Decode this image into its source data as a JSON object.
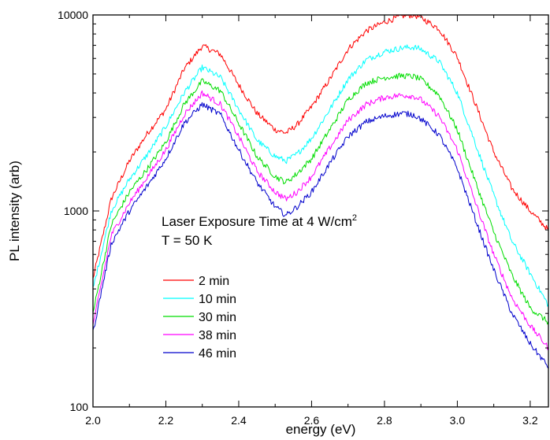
{
  "chart_data": {
    "type": "line",
    "xlabel": "energy (eV)",
    "ylabel": "PL intensity (arb)",
    "xlim": [
      2.0,
      3.25
    ],
    "ylim": [
      100,
      10000
    ],
    "yscale": "log",
    "grid": false,
    "x_ticks": [
      2.0,
      2.2,
      2.4,
      2.6,
      2.8,
      3.0,
      3.2
    ],
    "x_tick_labels": [
      "2.0",
      "2.2",
      "2.4",
      "2.6",
      "2.8",
      "3.0",
      "3.2"
    ],
    "y_ticks": [
      100,
      1000,
      10000
    ],
    "y_tick_labels": [
      "100",
      "1000",
      "10000"
    ],
    "annotation": {
      "line1_prefix": "Laser Exposure Time at 4 W/cm",
      "line1_sup": "2",
      "line2": "T = 50 K"
    },
    "legend_position": "inside-left",
    "series": [
      {
        "name": "2 min",
        "color": "#ff0000",
        "x": [
          2.0,
          2.05,
          2.1,
          2.15,
          2.2,
          2.25,
          2.3,
          2.35,
          2.4,
          2.45,
          2.5,
          2.53,
          2.56,
          2.6,
          2.65,
          2.7,
          2.75,
          2.8,
          2.85,
          2.88,
          2.9,
          2.95,
          3.0,
          3.05,
          3.1,
          3.15,
          3.2,
          3.25
        ],
        "y": [
          450,
          1150,
          1800,
          2500,
          3300,
          5300,
          6950,
          6300,
          4400,
          3150,
          2600,
          2500,
          2750,
          3400,
          4700,
          6700,
          8300,
          9200,
          9900,
          10000,
          9700,
          8500,
          6100,
          3500,
          2000,
          1300,
          1000,
          800
        ]
      },
      {
        "name": "10 min",
        "color": "#00ffff",
        "x": [
          2.0,
          2.05,
          2.1,
          2.15,
          2.2,
          2.25,
          2.3,
          2.35,
          2.4,
          2.45,
          2.5,
          2.53,
          2.56,
          2.6,
          2.65,
          2.7,
          2.75,
          2.8,
          2.85,
          2.88,
          2.9,
          2.95,
          3.0,
          3.05,
          3.1,
          3.15,
          3.2,
          3.25
        ],
        "y": [
          400,
          1000,
          1450,
          1950,
          2700,
          4000,
          5400,
          4800,
          3300,
          2300,
          1900,
          1800,
          1950,
          2350,
          3300,
          4700,
          5900,
          6500,
          6800,
          6850,
          6700,
          5800,
          4000,
          2200,
          1200,
          700,
          480,
          330
        ]
      },
      {
        "name": "30 min",
        "color": "#00dd00",
        "x": [
          2.0,
          2.05,
          2.1,
          2.15,
          2.2,
          2.25,
          2.3,
          2.35,
          2.4,
          2.45,
          2.5,
          2.53,
          2.56,
          2.6,
          2.65,
          2.7,
          2.75,
          2.8,
          2.85,
          2.88,
          2.9,
          2.95,
          3.0,
          3.05,
          3.1,
          3.15,
          3.2,
          3.25
        ],
        "y": [
          300,
          850,
          1250,
          1650,
          2250,
          3500,
          4600,
          4100,
          2800,
          1900,
          1500,
          1400,
          1550,
          1850,
          2600,
          3700,
          4500,
          4800,
          4900,
          4850,
          4700,
          3900,
          2600,
          1400,
          780,
          470,
          320,
          270
        ]
      },
      {
        "name": "38 min",
        "color": "#ff00ff",
        "x": [
          2.0,
          2.05,
          2.1,
          2.15,
          2.2,
          2.25,
          2.3,
          2.35,
          2.4,
          2.45,
          2.5,
          2.53,
          2.56,
          2.6,
          2.65,
          2.7,
          2.75,
          2.8,
          2.85,
          2.88,
          2.9,
          2.95,
          3.0,
          3.05,
          3.1,
          3.15,
          3.2,
          3.25
        ],
        "y": [
          260,
          750,
          1100,
          1500,
          2050,
          3100,
          4000,
          3500,
          2400,
          1600,
          1250,
          1150,
          1250,
          1500,
          2100,
          2900,
          3500,
          3800,
          3900,
          3850,
          3700,
          3050,
          2050,
          1100,
          600,
          360,
          260,
          200
        ]
      },
      {
        "name": "46 min",
        "color": "#0000cc",
        "x": [
          2.0,
          2.05,
          2.1,
          2.15,
          2.2,
          2.25,
          2.3,
          2.35,
          2.4,
          2.45,
          2.5,
          2.53,
          2.56,
          2.6,
          2.65,
          2.7,
          2.75,
          2.8,
          2.85,
          2.88,
          2.9,
          2.95,
          3.0,
          3.05,
          3.1,
          3.15,
          3.2,
          3.25
        ],
        "y": [
          240,
          680,
          1000,
          1350,
          1850,
          2800,
          3500,
          3100,
          2050,
          1400,
          1050,
          950,
          1050,
          1250,
          1750,
          2400,
          2850,
          3050,
          3150,
          3100,
          2950,
          2450,
          1650,
          900,
          500,
          300,
          210,
          160
        ]
      }
    ]
  }
}
